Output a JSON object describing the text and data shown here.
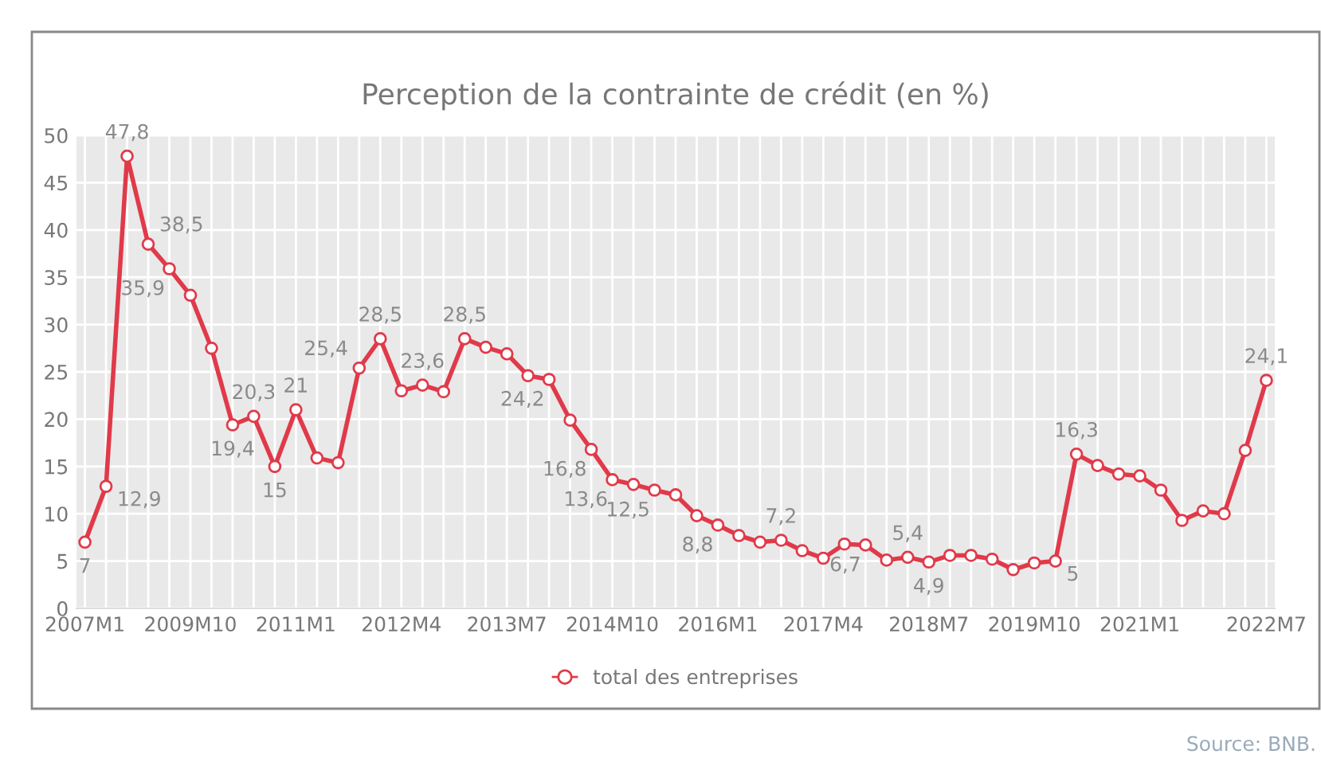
{
  "chart_data": {
    "type": "line",
    "title": "Perception de la contrainte de crédit (en %)",
    "categories": [
      "2007M1",
      null,
      null,
      null,
      null,
      "2009M10",
      null,
      null,
      null,
      null,
      "2011M1",
      null,
      null,
      null,
      null,
      "2012M4",
      null,
      null,
      null,
      null,
      "2013M7",
      null,
      null,
      null,
      null,
      "2014M10",
      null,
      null,
      null,
      null,
      "2016M1",
      null,
      null,
      null,
      null,
      "2017M4",
      null,
      null,
      null,
      null,
      "2018M7",
      null,
      null,
      null,
      null,
      "2019M10",
      null,
      null,
      null,
      null,
      "2021M1",
      null,
      null,
      null,
      null,
      null,
      "2022M7"
    ],
    "series": [
      {
        "name": "total des entreprises",
        "color": "#e03a4a",
        "values": [
          7,
          12.9,
          47.8,
          38.5,
          35.9,
          33.1,
          27.5,
          19.4,
          20.3,
          15,
          21,
          15.9,
          15.4,
          25.4,
          28.5,
          23,
          23.6,
          22.9,
          28.5,
          27.6,
          26.9,
          24.6,
          24.2,
          19.9,
          16.8,
          13.6,
          13.1,
          12.5,
          12,
          9.8,
          8.8,
          7.7,
          7,
          7.2,
          6.1,
          5.3,
          6.8,
          6.7,
          5.1,
          5.4,
          4.9,
          5.6,
          5.6,
          5.2,
          4.1,
          4.8,
          5,
          16.3,
          15.1,
          14.2,
          14,
          12.5,
          9.3,
          10.3,
          10,
          16.7,
          24.1
        ],
        "value_labels": [
          "7",
          "12,9",
          "47,8",
          "38,5",
          "35,9",
          null,
          null,
          "19,4",
          "20,3",
          "15",
          "21",
          null,
          null,
          "25,4",
          "28,5",
          null,
          "23,6",
          null,
          "28,5",
          null,
          null,
          null,
          "24,2",
          null,
          "16,8",
          "13,6",
          null,
          "12,5",
          null,
          null,
          "8,8",
          null,
          null,
          "7,2",
          null,
          null,
          null,
          "6,7",
          null,
          "5,4",
          "4,9",
          null,
          null,
          null,
          null,
          null,
          "5",
          "16,3",
          null,
          null,
          null,
          null,
          null,
          null,
          null,
          null,
          "24,1"
        ]
      }
    ],
    "ylim": [
      0,
      50
    ],
    "yticks": [
      0,
      5,
      10,
      15,
      20,
      25,
      30,
      35,
      40,
      45,
      50
    ],
    "grid": true,
    "legend": "bottom",
    "marker": "circle",
    "line_style": "solid",
    "annotations": [
      "Source: BNB."
    ]
  }
}
